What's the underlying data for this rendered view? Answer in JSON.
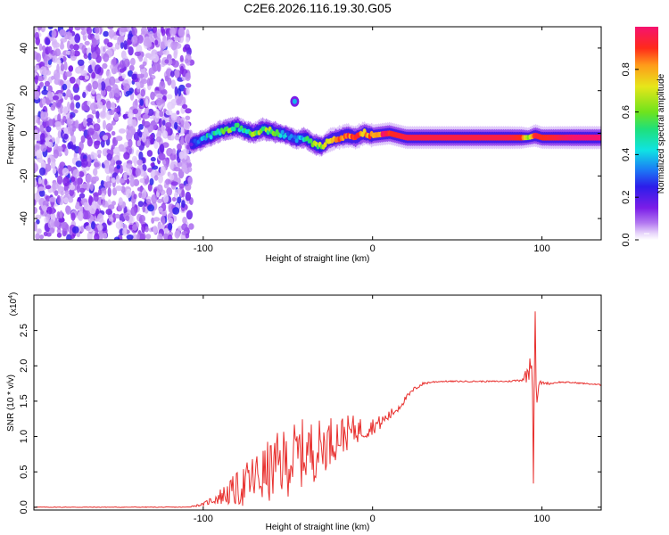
{
  "page_title": "C2E6.2026.116.19.30.G05",
  "colors": {
    "accent": "#e8302e",
    "cmap": [
      "#ffffff",
      "#e8d6fb",
      "#b277f0",
      "#7b1de8",
      "#2c1dea",
      "#1b7cf5",
      "#0fe3e3",
      "#1fe07a",
      "#6fe31c",
      "#e7e61a",
      "#ff9b1a",
      "#ff2a1a",
      "#f5126f"
    ]
  },
  "chart_data": [
    {
      "type": "heatmap",
      "id": "spectrogram",
      "title": "C2E6.2026.116.19.30.G05",
      "xlabel": "Height of straight line (km)",
      "ylabel": "Frequency (Hz)",
      "xlim": [
        -200,
        135
      ],
      "ylim": [
        -50,
        50
      ],
      "xticks": [
        -100,
        0,
        100
      ],
      "xtick_labels": [
        "-100",
        "0",
        "100"
      ],
      "yticks": [
        -40,
        -20,
        0,
        20,
        40
      ],
      "ytick_labels": [
        "-40",
        "-20",
        "0",
        "20",
        "40"
      ],
      "noise_region_x": [
        -200,
        -107
      ],
      "ridge": {
        "x": [
          -107,
          -100,
          -95,
          -90,
          -85,
          -80,
          -75,
          -70,
          -65,
          -60,
          -55,
          -50,
          -45,
          -40,
          -35,
          -30,
          -25,
          -20,
          -15,
          -10,
          -5,
          0,
          10,
          20,
          40,
          60,
          80,
          88,
          92,
          96,
          100,
          110,
          120,
          135
        ],
        "y": [
          -5,
          -3,
          -1,
          1,
          2,
          3,
          1,
          0,
          2,
          1,
          0,
          -1,
          -3,
          -2,
          -5,
          -6,
          -3,
          -2,
          -1,
          -2,
          0,
          -1,
          0,
          -2,
          -2,
          -2,
          -2,
          -2,
          -2,
          -1,
          -2,
          -2,
          -2,
          -2
        ],
        "amplitude": [
          0.25,
          0.35,
          0.45,
          0.5,
          0.55,
          0.5,
          0.5,
          0.55,
          0.6,
          0.55,
          0.45,
          0.35,
          0.3,
          0.4,
          0.55,
          0.6,
          0.7,
          0.75,
          0.8,
          0.85,
          0.8,
          0.85,
          0.9,
          0.95,
          0.95,
          0.95,
          0.95,
          0.9,
          0.6,
          0.95,
          0.9,
          0.95,
          1.0,
          1.0
        ]
      },
      "blob": {
        "x": -46,
        "y": 15
      }
    },
    {
      "type": "colorbar",
      "id": "colorbar",
      "label": "Normalized spectral amplitude",
      "lim": [
        0,
        1
      ],
      "ticks": [
        0,
        0.2,
        0.4,
        0.6,
        0.8
      ],
      "tick_labels": [
        "0.0",
        "0.2",
        "0.4",
        "0.6",
        "0.8"
      ]
    },
    {
      "type": "line",
      "id": "snr",
      "xlabel": "Height of straight line (km)",
      "ylabel": "SNR (10 * v/v)",
      "y_multiplier": "(x10",
      "y_multiplier_exp": "4",
      "xlim": [
        -200,
        135
      ],
      "ylim": [
        -0.04,
        3.0
      ],
      "xticks": [
        -100,
        0,
        100
      ],
      "xtick_labels": [
        "-100",
        "0",
        "100"
      ],
      "yticks": [
        0.0,
        0.5,
        1.0,
        1.5,
        2.0,
        2.5
      ],
      "ytick_labels": [
        "0.0",
        "0.5",
        "1.0",
        "1.5",
        "2.0",
        "2.5"
      ],
      "series": [
        {
          "name": "SNR",
          "color": "#e8302e",
          "x": [
            -200,
            -150,
            -110,
            -100,
            -95,
            -90,
            -85,
            -80,
            -75,
            -70,
            -65,
            -60,
            -55,
            -50,
            -45,
            -40,
            -35,
            -30,
            -25,
            -20,
            -15,
            -10,
            -5,
            0,
            5,
            10,
            15,
            20,
            25,
            30,
            35,
            40,
            50,
            60,
            70,
            80,
            88,
            92,
            94,
            95,
            96,
            97,
            98,
            100,
            105,
            110,
            120,
            130,
            135
          ],
          "y": [
            0.0,
            0.0,
            0.0,
            0.04,
            0.1,
            0.15,
            0.2,
            0.25,
            0.32,
            0.4,
            0.45,
            0.52,
            0.6,
            0.65,
            0.72,
            0.78,
            0.8,
            0.85,
            0.95,
            1.0,
            1.05,
            1.1,
            1.1,
            1.15,
            1.2,
            1.3,
            1.4,
            1.55,
            1.68,
            1.75,
            1.77,
            1.78,
            1.78,
            1.78,
            1.78,
            1.78,
            1.8,
            1.9,
            2.3,
            0.7,
            2.9,
            1.2,
            1.75,
            1.76,
            1.75,
            1.77,
            1.76,
            1.74,
            1.73
          ],
          "noise_amplitude": [
            0.005,
            0.005,
            0.005,
            0.02,
            0.06,
            0.12,
            0.18,
            0.25,
            0.32,
            0.38,
            0.42,
            0.45,
            0.48,
            0.5,
            0.5,
            0.48,
            0.45,
            0.4,
            0.35,
            0.3,
            0.25,
            0.2,
            0.16,
            0.12,
            0.1,
            0.08,
            0.06,
            0.04,
            0.03,
            0.02,
            0.015,
            0.01,
            0.01,
            0.01,
            0.01,
            0.01,
            0.02,
            0.15,
            0.3,
            0.5,
            0.3,
            0.3,
            0.05,
            0.02,
            0.015,
            0.01,
            0.01,
            0.01,
            0.01
          ]
        }
      ]
    }
  ]
}
